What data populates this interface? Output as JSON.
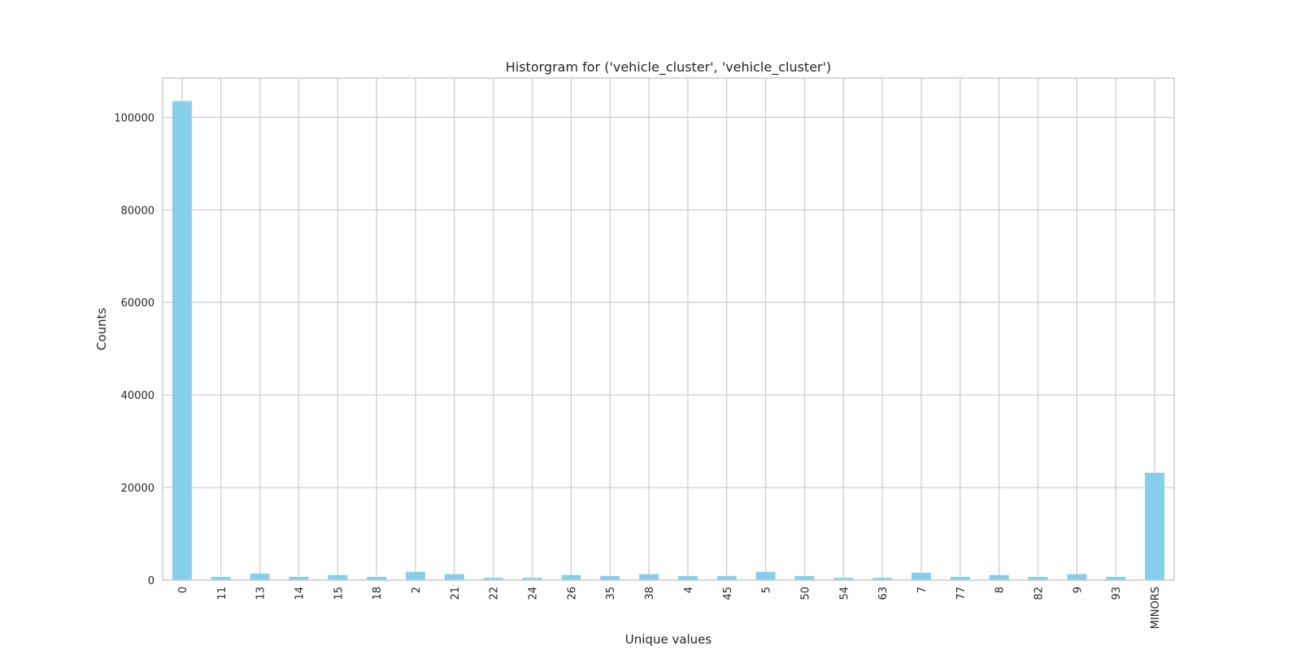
{
  "chart_data": {
    "type": "bar",
    "title": "Historgram for ('vehicle_cluster', 'vehicle_cluster')",
    "xlabel": "Unique values",
    "ylabel": "Counts",
    "categories": [
      "0",
      "11",
      "13",
      "14",
      "15",
      "18",
      "2",
      "21",
      "22",
      "24",
      "26",
      "35",
      "38",
      "4",
      "45",
      "5",
      "50",
      "54",
      "63",
      "7",
      "77",
      "8",
      "82",
      "9",
      "93",
      "MINORS"
    ],
    "values": [
      103500,
      700,
      1400,
      700,
      1100,
      700,
      1800,
      1300,
      500,
      500,
      1100,
      900,
      1300,
      900,
      900,
      1800,
      900,
      500,
      500,
      1600,
      700,
      1100,
      700,
      1300,
      700,
      23200
    ],
    "ylim": [
      0,
      108500
    ],
    "yticks": [
      0,
      20000,
      40000,
      60000,
      80000,
      100000
    ],
    "grid": true,
    "bar_color": "#87ceeb"
  }
}
